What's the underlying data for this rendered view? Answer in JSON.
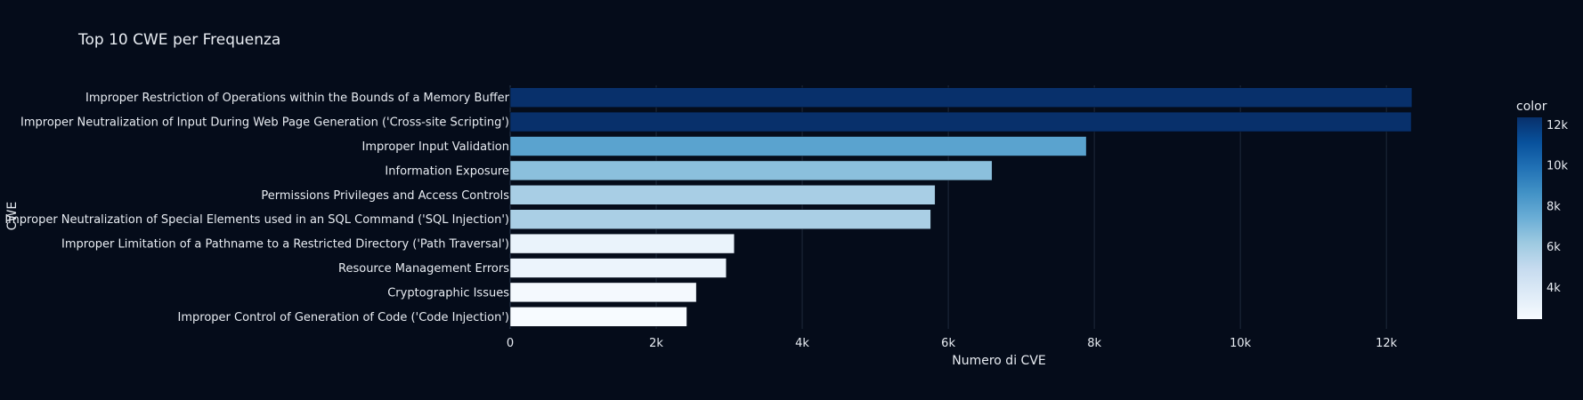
{
  "chart_data": {
    "type": "bar",
    "orientation": "horizontal",
    "title": "Top 10 CWE per Frequenza",
    "xlabel": "Numero di CVE",
    "ylabel": "CWE",
    "xlim": [
      0,
      13400
    ],
    "x_ticks": [
      {
        "value": 0,
        "label": "0"
      },
      {
        "value": 2000,
        "label": "2k"
      },
      {
        "value": 4000,
        "label": "4k"
      },
      {
        "value": 6000,
        "label": "6k"
      },
      {
        "value": 8000,
        "label": "8k"
      },
      {
        "value": 10000,
        "label": "10k"
      },
      {
        "value": 12000,
        "label": "12k"
      }
    ],
    "grid": true,
    "categories": [
      "Improper Restriction of Operations within the Bounds of a Memory Buffer",
      "Improper Neutralization of Input During Web Page Generation ('Cross-site Scripting')",
      "Improper Input Validation",
      "Information Exposure",
      "Permissions Privileges and Access Controls",
      "Improper Neutralization of Special Elements used in an SQL Command ('SQL Injection')",
      "Improper Limitation of a Pathname to a Restricted Directory ('Path Traversal')",
      "Resource Management Errors",
      "Cryptographic Issues",
      "Improper Control of Generation of Code ('Code Injection')"
    ],
    "values": [
      12350,
      12340,
      7890,
      6600,
      5820,
      5760,
      3070,
      2960,
      2550,
      2420
    ],
    "colorbar": {
      "title": "color",
      "range": [
        2420,
        12350
      ],
      "ticks": [
        {
          "value": 4000,
          "label": "4k"
        },
        {
          "value": 6000,
          "label": "6k"
        },
        {
          "value": 8000,
          "label": "8k"
        },
        {
          "value": 10000,
          "label": "10k"
        },
        {
          "value": 12000,
          "label": "12k"
        }
      ],
      "colorscale": [
        "#f7fbff",
        "#deebf7",
        "#c6dbef",
        "#9ecae1",
        "#6baed6",
        "#4292c6",
        "#2171b5",
        "#08519c",
        "#08306b"
      ]
    }
  }
}
